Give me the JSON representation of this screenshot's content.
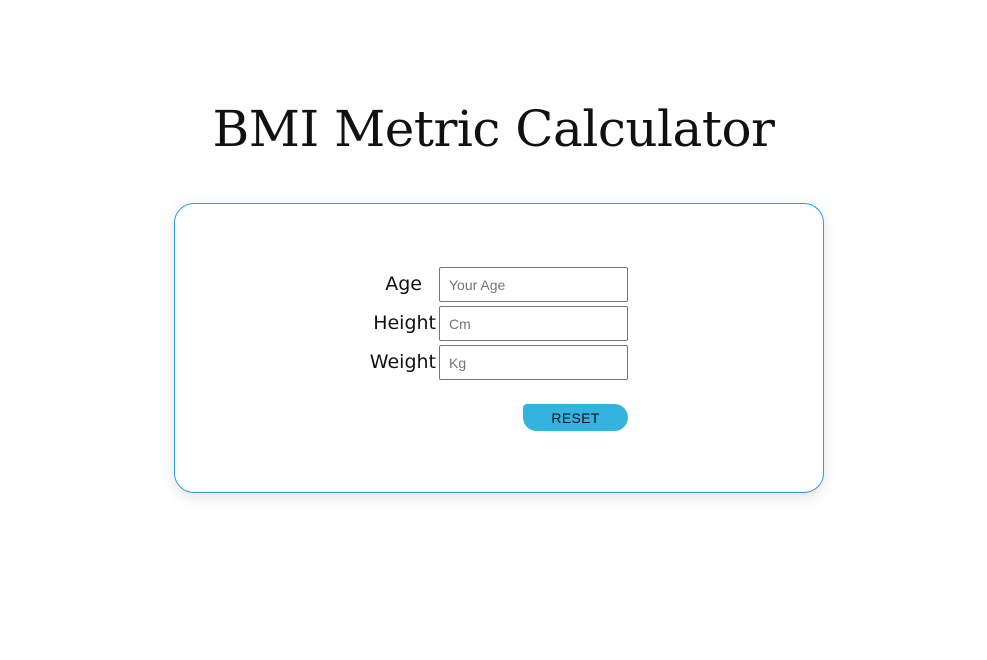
{
  "header": {
    "title": "BMI Metric Calculator"
  },
  "form": {
    "age": {
      "label": "Age",
      "placeholder": "Your Age",
      "value": ""
    },
    "height": {
      "label": "Height",
      "placeholder": "Cm",
      "value": ""
    },
    "weight": {
      "label": "Weight",
      "placeholder": "Kg",
      "value": ""
    },
    "reset_label": "RESET"
  },
  "colors": {
    "card_border": "#2f9be8",
    "button_bg": "#33b4e0"
  }
}
